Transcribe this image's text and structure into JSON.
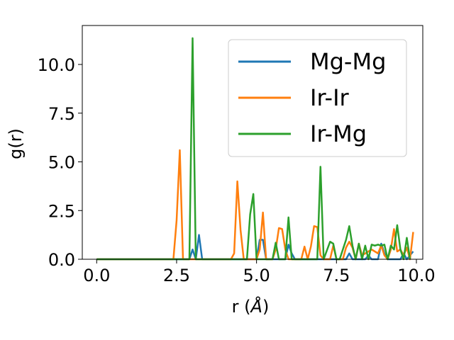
{
  "chart_data": {
    "type": "line",
    "xlabel_main": "r (",
    "xlabel_unit": "Å",
    "xlabel_close": ")",
    "ylabel": "g(r)",
    "xlim": [
      -0.45,
      10.2
    ],
    "ylim": [
      0,
      12.0
    ],
    "xticks": [
      0.0,
      2.5,
      5.0,
      7.5,
      10.0
    ],
    "xtick_labels": [
      "0.0",
      "2.5",
      "5.0",
      "7.5",
      "10.0"
    ],
    "yticks": [
      0.0,
      2.5,
      5.0,
      7.5,
      10.0
    ],
    "ytick_labels": [
      "0.0",
      "2.5",
      "5.0",
      "7.5",
      "10.0"
    ],
    "grid": false,
    "legend_position": "upper right",
    "series": [
      {
        "name": "Mg-Mg",
        "color": "#1f77b4",
        "points": [
          [
            0,
            0
          ],
          [
            2.9,
            0
          ],
          [
            3.0,
            0.5
          ],
          [
            3.1,
            0
          ],
          [
            3.2,
            1.25
          ],
          [
            3.3,
            0
          ],
          [
            5.0,
            0
          ],
          [
            5.1,
            1.0
          ],
          [
            5.2,
            1.0
          ],
          [
            5.3,
            0
          ],
          [
            5.9,
            0
          ],
          [
            6.0,
            0.75
          ],
          [
            6.1,
            0.3
          ],
          [
            6.2,
            0
          ],
          [
            7.8,
            0
          ],
          [
            7.9,
            0.3
          ],
          [
            8.0,
            0
          ],
          [
            8.4,
            0
          ],
          [
            8.5,
            0.2
          ],
          [
            8.6,
            0
          ],
          [
            8.8,
            0
          ],
          [
            8.9,
            0.8
          ],
          [
            9.0,
            0.3
          ],
          [
            9.1,
            0
          ],
          [
            9.5,
            0
          ],
          [
            9.6,
            0.3
          ],
          [
            9.7,
            0
          ],
          [
            9.9,
            0.4
          ]
        ]
      },
      {
        "name": "Ir-Ir",
        "color": "#ff7f0e",
        "points": [
          [
            0,
            0
          ],
          [
            2.4,
            0
          ],
          [
            2.5,
            2.0
          ],
          [
            2.6,
            5.6
          ],
          [
            2.7,
            0
          ],
          [
            4.2,
            0
          ],
          [
            4.3,
            0.3
          ],
          [
            4.4,
            4.0
          ],
          [
            4.5,
            1.5
          ],
          [
            4.6,
            0
          ],
          [
            5.0,
            0
          ],
          [
            5.1,
            0.5
          ],
          [
            5.2,
            2.4
          ],
          [
            5.3,
            0
          ],
          [
            5.5,
            0
          ],
          [
            5.6,
            0.5
          ],
          [
            5.7,
            1.6
          ],
          [
            5.8,
            1.55
          ],
          [
            5.9,
            0.5
          ],
          [
            6.0,
            0
          ],
          [
            6.4,
            0
          ],
          [
            6.5,
            0.65
          ],
          [
            6.6,
            0
          ],
          [
            6.7,
            0.65
          ],
          [
            6.8,
            1.7
          ],
          [
            6.9,
            1.65
          ],
          [
            7.0,
            0.2
          ],
          [
            7.1,
            0
          ],
          [
            7.3,
            0
          ],
          [
            7.4,
            0.7
          ],
          [
            7.5,
            0
          ],
          [
            7.7,
            0
          ],
          [
            7.8,
            0.6
          ],
          [
            7.9,
            0.9
          ],
          [
            8.0,
            0.6
          ],
          [
            8.1,
            0
          ],
          [
            8.2,
            0.8
          ],
          [
            8.3,
            0.2
          ],
          [
            8.5,
            0.4
          ],
          [
            8.6,
            0.5
          ],
          [
            8.8,
            0.3
          ],
          [
            8.9,
            0.7
          ],
          [
            9.0,
            0.2
          ],
          [
            9.1,
            0
          ],
          [
            9.2,
            0.5
          ],
          [
            9.3,
            1.55
          ],
          [
            9.4,
            0.4
          ],
          [
            9.5,
            0.5
          ],
          [
            9.6,
            0.2
          ],
          [
            9.7,
            0.6
          ],
          [
            9.8,
            0
          ],
          [
            9.9,
            1.4
          ]
        ]
      },
      {
        "name": "Ir-Mg",
        "color": "#2ca02c",
        "points": [
          [
            0,
            0
          ],
          [
            2.9,
            0
          ],
          [
            3.0,
            11.35
          ],
          [
            3.1,
            0
          ],
          [
            4.7,
            0
          ],
          [
            4.8,
            2.3
          ],
          [
            4.9,
            3.35
          ],
          [
            5.0,
            0
          ],
          [
            5.5,
            0
          ],
          [
            5.6,
            0.85
          ],
          [
            5.7,
            0
          ],
          [
            5.9,
            0
          ],
          [
            6.0,
            2.15
          ],
          [
            6.1,
            0
          ],
          [
            6.9,
            0
          ],
          [
            7.0,
            4.75
          ],
          [
            7.1,
            0
          ],
          [
            7.3,
            0.9
          ],
          [
            7.4,
            0.8
          ],
          [
            7.5,
            0
          ],
          [
            7.6,
            0
          ],
          [
            7.7,
            0.5
          ],
          [
            7.8,
            1.0
          ],
          [
            7.9,
            1.7
          ],
          [
            8.0,
            0.7
          ],
          [
            8.1,
            0
          ],
          [
            8.2,
            0.8
          ],
          [
            8.3,
            0
          ],
          [
            8.4,
            0.7
          ],
          [
            8.5,
            0
          ],
          [
            8.6,
            0.75
          ],
          [
            8.7,
            0.7
          ],
          [
            8.8,
            0.75
          ],
          [
            8.9,
            0.7
          ],
          [
            9.0,
            0.75
          ],
          [
            9.1,
            0
          ],
          [
            9.2,
            0.7
          ],
          [
            9.3,
            0.5
          ],
          [
            9.4,
            1.75
          ],
          [
            9.5,
            0.5
          ],
          [
            9.6,
            0
          ],
          [
            9.7,
            1.1
          ],
          [
            9.8,
            0
          ]
        ]
      }
    ]
  }
}
